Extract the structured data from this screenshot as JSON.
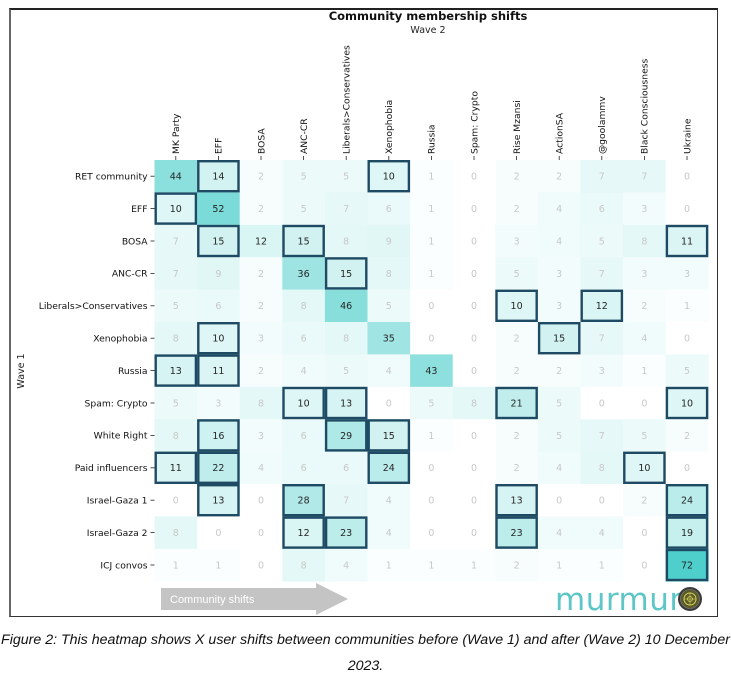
{
  "chart_data": {
    "type": "heatmap",
    "title": "Community membership shifts",
    "xlabel": "Wave 2",
    "ylabel": "Wave 1",
    "x_categories": [
      "MK Party",
      "EFF",
      "BOSA",
      "ANC-CR",
      "Liberals>Conservatives",
      "Xenophobia",
      "Russia",
      "Spam: Crypto",
      "Rise Mzansi",
      "ActionSA",
      "@goolammv",
      "Black Consciousness",
      "Ukraine"
    ],
    "y_categories": [
      "RET community",
      "EFF",
      "BOSA",
      "ANC-CR",
      "Liberals>Conservatives",
      "Xenophobia",
      "Russia",
      "Spam: Crypto",
      "White Right",
      "Paid influencers",
      "Israel-Gaza 1",
      "Israel-Gaza 2",
      "ICJ convos"
    ],
    "values": [
      [
        44,
        14,
        2,
        5,
        5,
        10,
        1,
        0,
        2,
        2,
        7,
        7,
        0
      ],
      [
        10,
        52,
        2,
        5,
        7,
        6,
        1,
        0,
        2,
        4,
        6,
        3,
        0
      ],
      [
        7,
        15,
        12,
        15,
        8,
        9,
        1,
        0,
        3,
        4,
        5,
        8,
        11
      ],
      [
        7,
        9,
        2,
        36,
        15,
        8,
        1,
        0,
        5,
        3,
        7,
        3,
        3
      ],
      [
        5,
        6,
        2,
        8,
        46,
        5,
        0,
        0,
        10,
        3,
        12,
        2,
        1
      ],
      [
        8,
        10,
        3,
        6,
        8,
        35,
        0,
        0,
        2,
        15,
        7,
        4,
        0
      ],
      [
        13,
        11,
        2,
        4,
        5,
        4,
        43,
        0,
        2,
        2,
        3,
        1,
        5
      ],
      [
        5,
        3,
        8,
        10,
        13,
        0,
        5,
        8,
        21,
        5,
        0,
        0,
        10
      ],
      [
        8,
        16,
        3,
        6,
        29,
        15,
        1,
        0,
        2,
        5,
        7,
        5,
        2
      ],
      [
        11,
        22,
        4,
        6,
        6,
        24,
        0,
        0,
        2,
        4,
        8,
        10,
        0
      ],
      [
        0,
        13,
        0,
        28,
        7,
        4,
        0,
        0,
        13,
        0,
        0,
        2,
        24
      ],
      [
        8,
        0,
        0,
        12,
        23,
        4,
        0,
        0,
        23,
        4,
        4,
        0,
        19
      ],
      [
        1,
        1,
        0,
        8,
        4,
        1,
        1,
        1,
        2,
        1,
        1,
        0,
        72
      ]
    ],
    "highlighted_cells": [
      [
        0,
        1
      ],
      [
        0,
        5
      ],
      [
        1,
        0
      ],
      [
        2,
        1
      ],
      [
        2,
        3
      ],
      [
        2,
        12
      ],
      [
        3,
        4
      ],
      [
        4,
        8
      ],
      [
        4,
        10
      ],
      [
        5,
        1
      ],
      [
        5,
        9
      ],
      [
        6,
        0
      ],
      [
        6,
        1
      ],
      [
        7,
        3
      ],
      [
        7,
        4
      ],
      [
        7,
        8
      ],
      [
        7,
        12
      ],
      [
        8,
        1
      ],
      [
        8,
        4
      ],
      [
        8,
        5
      ],
      [
        9,
        0
      ],
      [
        9,
        1
      ],
      [
        9,
        5
      ],
      [
        9,
        11
      ],
      [
        10,
        1
      ],
      [
        10,
        3
      ],
      [
        10,
        8
      ],
      [
        10,
        12
      ],
      [
        11,
        3
      ],
      [
        11,
        4
      ],
      [
        11,
        8
      ],
      [
        11,
        12
      ],
      [
        12,
        12
      ]
    ],
    "value_range": [
      0,
      72
    ],
    "colormap": {
      "low": "#ffffff",
      "high": "#4fcfcb"
    },
    "highlight_border_color": "#1f4a63",
    "legend": "none",
    "grid": false,
    "annotation_arrow": "Community shifts"
  },
  "branding": {
    "logo_text": "murmur"
  },
  "caption": "Figure 2: This heatmap shows X user shifts between communities before (Wave 1) and after (Wave 2) 10 December 2023."
}
